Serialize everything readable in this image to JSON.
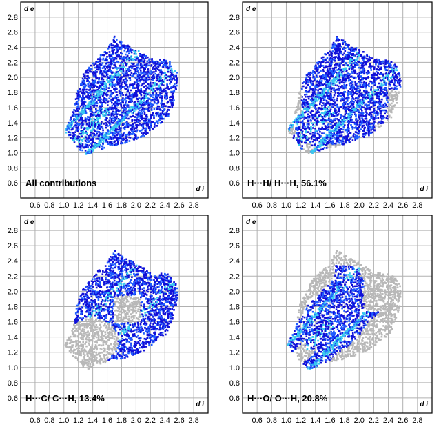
{
  "figure": {
    "colors": {
      "grid": "#b0b0b0",
      "frame": "#000000",
      "gray_region": "#b8b8b8",
      "points_dark": "#1010d8",
      "points_mid": "#1e5cff",
      "points_light": "#38c8f0",
      "text": "#000000"
    }
  },
  "chart_data": [
    {
      "type": "scatter",
      "subtype": "hirshfeld-fingerprint-plot",
      "label": "All contributions",
      "xlabel": "d i",
      "ylabel": "d e",
      "xlim": [
        0.4,
        3.0
      ],
      "ylim": [
        0.4,
        3.0
      ],
      "xticks": [
        "0.6",
        "0.8",
        "1.0",
        "1.2",
        "1.4",
        "1.6",
        "1.8",
        "2.0",
        "2.2",
        "2.4",
        "2.6",
        "2.8"
      ],
      "yticks": [
        "0.6",
        "0.8",
        "1.0",
        "1.2",
        "1.4",
        "1.6",
        "1.8",
        "2.0",
        "2.2",
        "2.4",
        "2.6",
        "2.8"
      ],
      "grid": true,
      "highlight_region": "all",
      "outline": [
        [
          1.0,
          1.3
        ],
        [
          1.08,
          1.46
        ],
        [
          1.14,
          1.64
        ],
        [
          1.17,
          1.84
        ],
        [
          1.26,
          2.06
        ],
        [
          1.44,
          2.26
        ],
        [
          1.6,
          2.4
        ],
        [
          1.68,
          2.56
        ],
        [
          1.85,
          2.45
        ],
        [
          2.0,
          2.38
        ],
        [
          2.2,
          2.26
        ],
        [
          2.44,
          2.24
        ],
        [
          2.56,
          2.08
        ],
        [
          2.56,
          1.88
        ],
        [
          2.5,
          1.64
        ],
        [
          2.42,
          1.46
        ],
        [
          2.28,
          1.36
        ],
        [
          2.12,
          1.24
        ],
        [
          1.9,
          1.16
        ],
        [
          1.7,
          1.1
        ],
        [
          1.5,
          1.06
        ],
        [
          1.3,
          0.98
        ],
        [
          1.2,
          1.06
        ],
        [
          1.12,
          1.16
        ]
      ]
    },
    {
      "type": "scatter",
      "subtype": "hirshfeld-fingerprint-plot",
      "label": "H···H/ H···H, 56.1%",
      "contact": "H···H/ H···H",
      "percent": 56.1,
      "xlabel": "d i",
      "ylabel": "d e",
      "xlim": [
        0.4,
        3.0
      ],
      "ylim": [
        0.4,
        3.0
      ],
      "xticks": [
        "0.6",
        "0.8",
        "1.0",
        "1.2",
        "1.4",
        "1.6",
        "1.8",
        "2.0",
        "2.2",
        "2.4",
        "2.6",
        "2.8"
      ],
      "yticks": [
        "0.6",
        "0.8",
        "1.0",
        "1.2",
        "1.4",
        "1.6",
        "1.8",
        "2.0",
        "2.2",
        "2.4",
        "2.6",
        "2.8"
      ],
      "grid": true,
      "highlight_region": "central",
      "outline": [
        [
          1.0,
          1.3
        ],
        [
          1.08,
          1.46
        ],
        [
          1.14,
          1.64
        ],
        [
          1.17,
          1.84
        ],
        [
          1.26,
          2.06
        ],
        [
          1.44,
          2.26
        ],
        [
          1.6,
          2.4
        ],
        [
          1.68,
          2.56
        ],
        [
          1.85,
          2.45
        ],
        [
          2.0,
          2.38
        ],
        [
          2.2,
          2.26
        ],
        [
          2.44,
          2.24
        ],
        [
          2.56,
          2.08
        ],
        [
          2.56,
          1.88
        ],
        [
          2.5,
          1.64
        ],
        [
          2.42,
          1.46
        ],
        [
          2.28,
          1.36
        ],
        [
          2.12,
          1.24
        ],
        [
          1.9,
          1.16
        ],
        [
          1.7,
          1.1
        ],
        [
          1.5,
          1.06
        ],
        [
          1.3,
          0.98
        ],
        [
          1.2,
          1.06
        ],
        [
          1.12,
          1.16
        ]
      ]
    },
    {
      "type": "scatter",
      "subtype": "hirshfeld-fingerprint-plot",
      "label": "H···C/ C···H, 13.4%",
      "contact": "H···C/ C···H",
      "percent": 13.4,
      "xlabel": "d i",
      "ylabel": "d e",
      "xlim": [
        0.4,
        3.0
      ],
      "ylim": [
        0.4,
        3.0
      ],
      "xticks": [
        "0.6",
        "0.8",
        "1.0",
        "1.2",
        "1.4",
        "1.6",
        "1.8",
        "2.0",
        "2.2",
        "2.4",
        "2.6",
        "2.8"
      ],
      "yticks": [
        "0.6",
        "0.8",
        "1.0",
        "1.2",
        "1.4",
        "1.6",
        "1.8",
        "2.0",
        "2.2",
        "2.4",
        "2.6",
        "2.8"
      ],
      "grid": true,
      "highlight_region": "wings",
      "outline": [
        [
          1.0,
          1.3
        ],
        [
          1.08,
          1.46
        ],
        [
          1.14,
          1.64
        ],
        [
          1.17,
          1.84
        ],
        [
          1.26,
          2.06
        ],
        [
          1.44,
          2.26
        ],
        [
          1.6,
          2.4
        ],
        [
          1.68,
          2.56
        ],
        [
          1.85,
          2.45
        ],
        [
          2.0,
          2.38
        ],
        [
          2.2,
          2.26
        ],
        [
          2.44,
          2.24
        ],
        [
          2.56,
          2.08
        ],
        [
          2.56,
          1.88
        ],
        [
          2.5,
          1.64
        ],
        [
          2.42,
          1.46
        ],
        [
          2.28,
          1.36
        ],
        [
          2.12,
          1.24
        ],
        [
          1.9,
          1.16
        ],
        [
          1.7,
          1.1
        ],
        [
          1.5,
          1.06
        ],
        [
          1.3,
          0.98
        ],
        [
          1.2,
          1.06
        ],
        [
          1.12,
          1.16
        ]
      ]
    },
    {
      "type": "scatter",
      "subtype": "hirshfeld-fingerprint-plot",
      "label": "H···O/ O···H, 20.8%",
      "contact": "H···O/ O···H",
      "percent": 20.8,
      "xlabel": "d i",
      "ylabel": "d e",
      "xlim": [
        0.4,
        3.0
      ],
      "ylim": [
        0.4,
        3.0
      ],
      "xticks": [
        "0.6",
        "0.8",
        "1.0",
        "1.2",
        "1.4",
        "1.6",
        "1.8",
        "2.0",
        "2.2",
        "2.4",
        "2.6",
        "2.8"
      ],
      "yticks": [
        "0.6",
        "0.8",
        "1.0",
        "1.2",
        "1.4",
        "1.6",
        "1.8",
        "2.0",
        "2.2",
        "2.4",
        "2.6",
        "2.8"
      ],
      "grid": true,
      "highlight_region": "spikes",
      "outline": [
        [
          1.0,
          1.3
        ],
        [
          1.08,
          1.46
        ],
        [
          1.14,
          1.64
        ],
        [
          1.17,
          1.84
        ],
        [
          1.26,
          2.06
        ],
        [
          1.44,
          2.26
        ],
        [
          1.6,
          2.4
        ],
        [
          1.68,
          2.56
        ],
        [
          1.85,
          2.45
        ],
        [
          2.0,
          2.38
        ],
        [
          2.2,
          2.26
        ],
        [
          2.44,
          2.24
        ],
        [
          2.56,
          2.08
        ],
        [
          2.56,
          1.88
        ],
        [
          2.5,
          1.64
        ],
        [
          2.42,
          1.46
        ],
        [
          2.28,
          1.36
        ],
        [
          2.12,
          1.24
        ],
        [
          1.9,
          1.16
        ],
        [
          1.7,
          1.1
        ],
        [
          1.5,
          1.06
        ],
        [
          1.3,
          0.98
        ],
        [
          1.2,
          1.06
        ],
        [
          1.12,
          1.16
        ]
      ]
    }
  ]
}
